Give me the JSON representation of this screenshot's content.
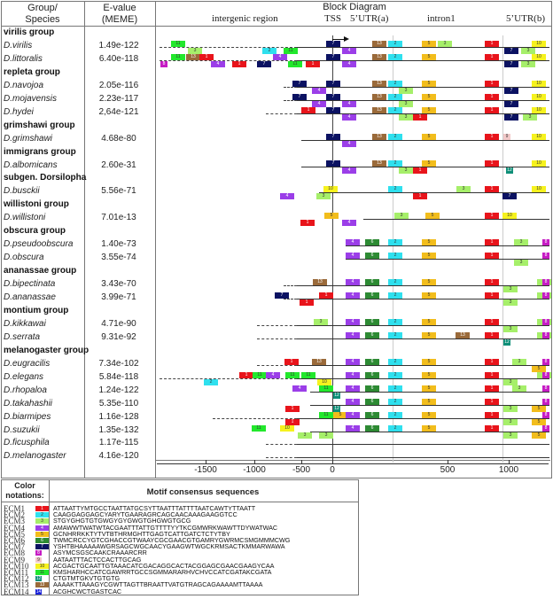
{
  "header": {
    "group_species": "Group/\nSpecies",
    "evalue": "E-value\n(MEME)",
    "block_diagram": "Block Diagram",
    "regions": [
      "intergenic region",
      "TSS",
      "5’UTR(a)",
      "intron1",
      "5’UTR(b)"
    ]
  },
  "rows": [
    {
      "type": "group",
      "label": "virilis group"
    },
    {
      "type": "species",
      "label": "D.virilis",
      "evalue": "1.49e-122"
    },
    {
      "type": "species",
      "label": "D.littoralis",
      "evalue": "6.40e-118"
    },
    {
      "type": "group",
      "label": "repleta group"
    },
    {
      "type": "species",
      "label": "D.navojoa",
      "evalue": "2.05e-116"
    },
    {
      "type": "species",
      "label": "D.mojavensis",
      "evalue": "2.23e-117"
    },
    {
      "type": "species",
      "label": "D.hydei",
      "evalue": "2,64e-121"
    },
    {
      "type": "group",
      "label": "grimshawi group"
    },
    {
      "type": "species",
      "label": "D.grimshawi",
      "evalue": "4.68e-80"
    },
    {
      "type": "group",
      "label": "immigrans group"
    },
    {
      "type": "species",
      "label": "D.albomicans",
      "evalue": "2.60e-31"
    },
    {
      "type": "group",
      "label": "subgen. Dorsilopha"
    },
    {
      "type": "species",
      "label": "D.busckii",
      "evalue": "5.56e-71"
    },
    {
      "type": "group",
      "label": "willistoni group"
    },
    {
      "type": "species",
      "label": "D.willistoni",
      "evalue": "7.01e-13"
    },
    {
      "type": "group",
      "label": "obscura group"
    },
    {
      "type": "species",
      "label": "D.pseudoobscura",
      "evalue": "1.40e-73"
    },
    {
      "type": "species",
      "label": "D.obscura",
      "evalue": "3.55e-74"
    },
    {
      "type": "group",
      "label": "ananassae group"
    },
    {
      "type": "species",
      "label": "D.bipectinata",
      "evalue": "3.43e-70"
    },
    {
      "type": "species",
      "label": "D.ananassae",
      "evalue": "3.99e-71"
    },
    {
      "type": "group",
      "label": "montium group"
    },
    {
      "type": "species",
      "label": "D.kikkawai",
      "evalue": "4.71e-90"
    },
    {
      "type": "species",
      "label": "D.serrata",
      "evalue": "9.31e-92"
    },
    {
      "type": "group",
      "label": "melanogaster group"
    },
    {
      "type": "species",
      "label": "D.eugracilis",
      "evalue": "7.34e-102"
    },
    {
      "type": "species",
      "label": "D.elegans",
      "evalue": "5.84e-118"
    },
    {
      "type": "species",
      "label": "D.rhopaloa",
      "evalue": "1.24e-122"
    },
    {
      "type": "species",
      "label": "D.takahashii",
      "evalue": "5.35e-110"
    },
    {
      "type": "species",
      "label": "D.biarmipes",
      "evalue": "1.16e-128"
    },
    {
      "type": "species",
      "label": "D.suzukii",
      "evalue": "1.35e-132"
    },
    {
      "type": "species",
      "label": "D.ficusphila",
      "evalue": "1.17e-115"
    },
    {
      "type": "species",
      "label": "D.melanogaster",
      "evalue": "4.16e-120"
    }
  ],
  "axis": {
    "ticks": [
      "-1500",
      "-1000",
      "-500",
      "0",
      "500",
      "1000"
    ]
  },
  "legend": {
    "color_header": "Color\nnotations:",
    "seq_header": "Motif consensus sequences",
    "motifs": [
      {
        "name": "ECM1",
        "num": "1",
        "color": "#e8141b",
        "seq": "ATTAATTYMTGCCTAATTATGCSYTTAATTTATTTTAATCAWTYTTAATT"
      },
      {
        "name": "ECM2",
        "num": "2",
        "color": "#2fe0ee",
        "seq": "CAAGGAGGAGCYARYTGAARAGRCAGCAACAAAGAAGGTCC"
      },
      {
        "name": "ECM3",
        "num": "3",
        "color": "#a6ef6a",
        "seq": "STGYGHGTGTGWGYGYGWGTGHGWGTGCG"
      },
      {
        "name": "ECM4",
        "num": "4",
        "color": "#9b3ee8",
        "seq": "AMAWWTWATWTACGAATTTATTGTTTTYYTKCGMWRKWAWTTDYWATWAC"
      },
      {
        "name": "ECM5",
        "num": "5",
        "color": "#f2bd1c",
        "seq": "GCNHRRKKTYTVTBTHRMGHTTGAGTCATTGATCTCTYTBY"
      },
      {
        "name": "ECM6",
        "num": "6",
        "color": "#2d8a33",
        "seq": "TWMCRCCYGTCGHACCGTWAAYCGCGAACGTGAMRYGWRMCSMGMMMCWG"
      },
      {
        "name": "ECM7",
        "num": "7",
        "color": "#0b1262",
        "seq": "YSHTBHAAAAAWGRSAGCWGCAACYGAAGWTWGCKRMSACTKMMARWAWA"
      },
      {
        "name": "ECM8",
        "num": "8",
        "color": "#c61cc4",
        "seq": "ASYMCSGSCAAKCRAAARCRR"
      },
      {
        "name": "ECM9",
        "num": "9",
        "color": "#f2c9c9",
        "seq": "AATAATTTACTCCACTTGCAG"
      },
      {
        "name": "ECM10",
        "num": "10",
        "color": "#f6f21e",
        "seq": "ACGACTGCAATTGTAAACATCGACAGGCACTACGGAGCGAACGAAGYCAA"
      },
      {
        "name": "ECM11",
        "num": "11",
        "color": "#22e82c",
        "seq": "KMSHARHCCATCGAWRRTGCCSGMMARARHVCHVCCATCGATAKCGATA"
      },
      {
        "name": "ECM12",
        "num": "12",
        "color": "#0f8f78",
        "seq": "CTGTMTGKVTGTGTG"
      },
      {
        "name": "ECM13",
        "num": "13",
        "color": "#9a6a3a",
        "seq": "AAAAKTTAAAGYCGWTTAGTTBRAATTVATGTRAGCAGAAAAMTTAAAA"
      },
      {
        "name": "ECM14",
        "num": "14",
        "color": "#1a22d8",
        "seq": "ACGHCWCTGASTCAC"
      }
    ]
  }
}
